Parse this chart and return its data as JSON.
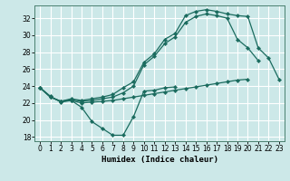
{
  "xlabel": "Humidex (Indice chaleur)",
  "bg_color": "#cce8e8",
  "grid_color": "#ffffff",
  "line_color": "#1a6b5e",
  "xlim": [
    -0.5,
    23.5
  ],
  "ylim": [
    17.5,
    33.5
  ],
  "xticks": [
    0,
    1,
    2,
    3,
    4,
    5,
    6,
    7,
    8,
    9,
    10,
    11,
    12,
    13,
    14,
    15,
    16,
    17,
    18,
    19,
    20,
    21,
    22,
    23
  ],
  "yticks": [
    18,
    20,
    22,
    24,
    26,
    28,
    30,
    32
  ],
  "curves": [
    {
      "x": [
        0,
        1,
        2,
        3,
        4,
        5,
        6,
        7,
        8,
        9,
        10,
        11,
        12,
        13
      ],
      "y": [
        23.8,
        22.8,
        22.1,
        22.3,
        21.5,
        19.8,
        19.0,
        18.2,
        18.2,
        20.4,
        23.4,
        23.5,
        23.8,
        23.9
      ]
    },
    {
      "x": [
        0,
        1,
        2,
        3,
        4,
        5,
        6,
        7,
        8,
        9,
        10,
        11,
        12,
        13,
        14,
        15,
        16,
        17,
        18,
        19,
        20
      ],
      "y": [
        23.8,
        22.7,
        22.2,
        22.3,
        22.0,
        22.1,
        22.2,
        22.3,
        22.5,
        22.7,
        22.9,
        23.1,
        23.3,
        23.5,
        23.7,
        23.9,
        24.1,
        24.3,
        24.5,
        24.7,
        24.8
      ]
    },
    {
      "x": [
        0,
        1,
        2,
        3,
        4,
        5,
        6,
        7,
        8,
        9,
        10,
        11,
        12,
        13,
        14,
        15,
        16,
        17,
        18,
        19,
        20,
        21
      ],
      "y": [
        23.8,
        22.7,
        22.2,
        22.4,
        22.2,
        22.3,
        22.5,
        22.7,
        23.2,
        24.0,
        26.5,
        27.5,
        29.0,
        29.8,
        31.5,
        32.2,
        32.5,
        32.3,
        32.0,
        29.5,
        28.5,
        27.0
      ]
    },
    {
      "x": [
        0,
        1,
        2,
        3,
        4,
        5,
        6,
        7,
        8,
        9,
        10,
        11,
        12,
        13,
        14,
        15,
        16,
        17,
        18,
        19,
        20,
        21,
        22,
        23
      ],
      "y": [
        23.8,
        22.7,
        22.2,
        22.5,
        22.3,
        22.5,
        22.7,
        23.0,
        23.8,
        24.5,
        26.8,
        27.8,
        29.5,
        30.2,
        32.3,
        32.8,
        33.0,
        32.8,
        32.5,
        32.3,
        32.2,
        28.5,
        27.3,
        24.8
      ]
    }
  ]
}
